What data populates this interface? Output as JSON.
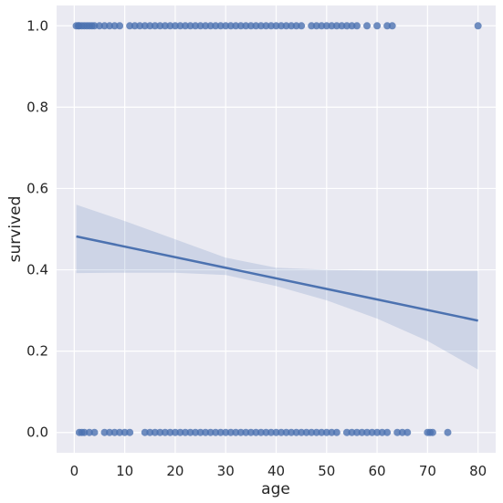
{
  "chart_data": {
    "type": "scatter",
    "title": "",
    "xlabel": "age",
    "ylabel": "survived",
    "xlim": [
      -3.5,
      83.5
    ],
    "ylim": [
      -0.05,
      1.05
    ],
    "x_ticks": [
      "0",
      "10",
      "20",
      "30",
      "40",
      "50",
      "60",
      "70",
      "80"
    ],
    "y_ticks": [
      "0.0",
      "0.2",
      "0.4",
      "0.6",
      "0.8",
      "1.0"
    ],
    "grid": true,
    "legend": "none",
    "colors": {
      "background": "#eaeaf2",
      "grid": "#ffffff",
      "series": "#4c72b0",
      "band": "#4c72b0"
    },
    "series": [
      {
        "kind": "points",
        "survived1_ages": [
          0.4,
          0.8,
          1,
          1.5,
          2,
          2.5,
          3,
          3.5,
          4,
          5,
          6,
          7,
          8,
          9,
          11,
          12,
          13,
          14,
          15,
          16,
          17,
          18,
          19,
          20,
          21,
          22,
          23,
          24,
          25,
          26,
          27,
          28,
          29,
          30,
          31,
          32,
          33,
          34,
          35,
          36,
          37,
          38,
          39,
          40,
          41,
          42,
          43,
          44,
          45,
          47,
          48,
          49,
          50,
          51,
          52,
          53,
          54,
          55,
          56,
          58,
          60,
          62,
          63,
          80
        ],
        "survived0_ages": [
          1,
          1.5,
          2,
          3,
          4,
          6,
          7,
          8,
          9,
          10,
          11,
          14,
          15,
          16,
          17,
          18,
          19,
          20,
          21,
          22,
          23,
          24,
          25,
          26,
          27,
          28,
          29,
          30,
          31,
          32,
          33,
          34,
          35,
          36,
          37,
          38,
          39,
          40,
          41,
          42,
          43,
          44,
          45,
          46,
          47,
          48,
          49,
          50,
          51,
          52,
          54,
          55,
          56,
          57,
          58,
          59,
          60,
          61,
          62,
          64,
          65,
          66,
          70,
          70.5,
          71,
          74
        ]
      },
      {
        "kind": "regression",
        "x": [
          0.4,
          80
        ],
        "y": [
          0.482,
          0.275
        ]
      },
      {
        "kind": "confidence_band",
        "x": [
          0.4,
          10,
          20,
          30,
          40,
          50,
          60,
          70,
          80
        ],
        "upper": [
          0.56,
          0.52,
          0.475,
          0.43,
          0.405,
          0.4,
          0.398,
          0.397,
          0.397
        ],
        "lower": [
          0.392,
          0.393,
          0.393,
          0.387,
          0.36,
          0.325,
          0.28,
          0.225,
          0.155
        ]
      }
    ]
  }
}
